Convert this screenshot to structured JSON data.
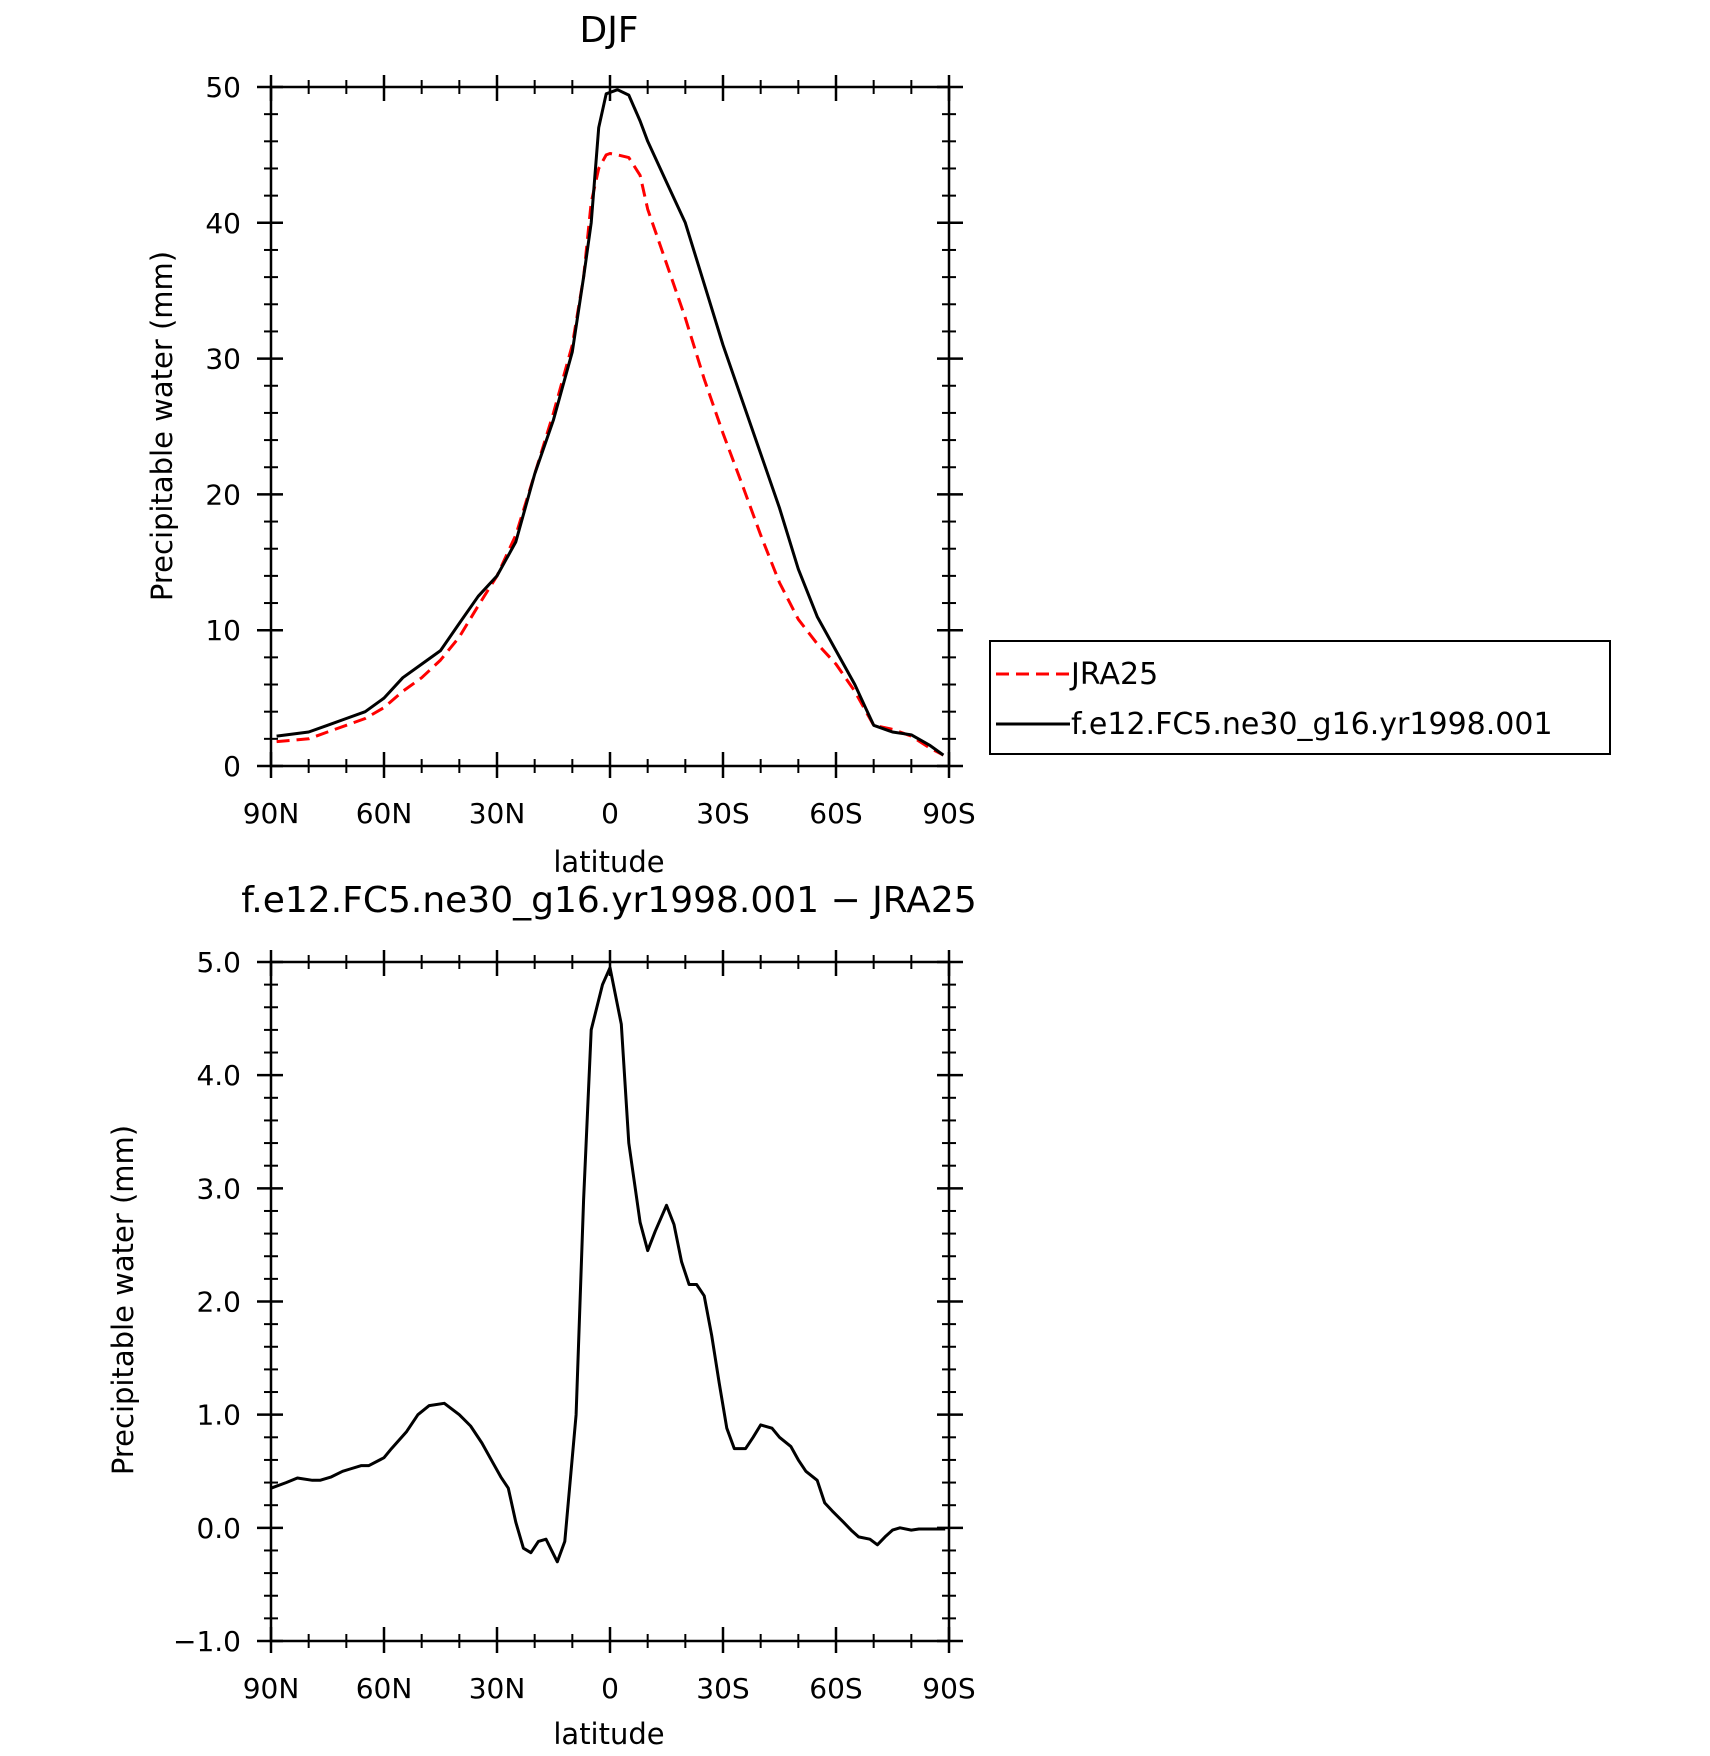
{
  "colors": {
    "model": "#000000",
    "jra": "#ff0000",
    "frame": "#000000",
    "background": "#ffffff"
  },
  "legend": {
    "entries": [
      {
        "label": "JRA25",
        "style": "dashed-red"
      },
      {
        "label": "f.e12.FC5.ne30_g16.yr1998.001",
        "style": "solid-black"
      }
    ]
  },
  "chart_data": [
    {
      "type": "line",
      "title": "DJF",
      "xlabel": "latitude",
      "ylabel": "Precipitable water (mm)",
      "x_direction": "north-to-south",
      "xlim": [
        90,
        -90
      ],
      "xticks": [
        90,
        60,
        30,
        0,
        -30,
        -60,
        -90
      ],
      "xtick_labels": [
        "90N",
        "60N",
        "30N",
        "0",
        "30S",
        "60S",
        "90S"
      ],
      "ylim": [
        0,
        50
      ],
      "yticks": [
        0,
        10,
        20,
        30,
        40,
        50
      ],
      "ytick_labels": [
        "0",
        "10",
        "20",
        "30",
        "40",
        "50"
      ],
      "grid": false,
      "legend_position": "right",
      "series": [
        {
          "name": "JRA25",
          "style": "dashed",
          "color": "#ff0000",
          "x": [
            88.5,
            80,
            75,
            70,
            65,
            60,
            55,
            50,
            45,
            40,
            35,
            30,
            25,
            20,
            15,
            10,
            7,
            5,
            3,
            1,
            0,
            -2,
            -5,
            -8,
            -10,
            -15,
            -20,
            -25,
            -30,
            -35,
            -40,
            -45,
            -50,
            -55,
            -60,
            -65,
            -68,
            -70,
            -75,
            -80,
            -85,
            -88.5
          ],
          "y": [
            1.8,
            2.0,
            2.5,
            3.0,
            3.5,
            4.3,
            5.5,
            6.5,
            7.8,
            9.5,
            11.8,
            14.0,
            17.0,
            21.5,
            26.0,
            31.0,
            36.0,
            41.5,
            44.0,
            45.0,
            45.1,
            45.0,
            44.8,
            43.5,
            41.0,
            37.0,
            33.0,
            28.5,
            24.5,
            20.8,
            17.0,
            13.5,
            10.8,
            9.0,
            7.5,
            5.5,
            4.0,
            3.0,
            2.7,
            2.2,
            1.3,
            0.8
          ]
        },
        {
          "name": "f.e12.FC5.ne30_g16.yr1998.001",
          "style": "solid",
          "color": "#000000",
          "x": [
            88.5,
            80,
            75,
            70,
            65,
            60,
            55,
            50,
            45,
            40,
            35,
            30,
            25,
            20,
            15,
            10,
            7,
            5,
            3,
            1,
            -2,
            -5,
            -8,
            -10,
            -15,
            -20,
            -25,
            -30,
            -35,
            -40,
            -45,
            -50,
            -55,
            -60,
            -65,
            -68,
            -70,
            -75,
            -80,
            -85,
            -88.5
          ],
          "y": [
            2.2,
            2.5,
            3.0,
            3.5,
            4.0,
            5.0,
            6.5,
            7.5,
            8.5,
            10.5,
            12.5,
            14.0,
            16.5,
            21.5,
            25.5,
            30.5,
            36.0,
            40.0,
            47.0,
            49.5,
            49.8,
            49.4,
            47.5,
            46.0,
            43.0,
            40.0,
            35.5,
            31.0,
            27.0,
            23.0,
            19.0,
            14.5,
            11.0,
            8.5,
            6.0,
            4.2,
            3.0,
            2.5,
            2.3,
            1.5,
            0.8
          ]
        }
      ]
    },
    {
      "type": "line",
      "title": "f.e12.FC5.ne30_g16.yr1998.001 − JRA25",
      "xlabel": "latitude",
      "ylabel": "Precipitable water (mm)",
      "x_direction": "north-to-south",
      "xlim": [
        90,
        -90
      ],
      "xticks": [
        90,
        60,
        30,
        0,
        -30,
        -60,
        -90
      ],
      "xtick_labels": [
        "90N",
        "60N",
        "30N",
        "0",
        "30S",
        "60S",
        "90S"
      ],
      "ylim": [
        -1.0,
        5.0
      ],
      "yticks": [
        -1.0,
        0.0,
        1.0,
        2.0,
        3.0,
        4.0,
        5.0
      ],
      "ytick_labels": [
        "−1.0",
        "0.0",
        "1.0",
        "2.0",
        "3.0",
        "4.0",
        "5.0"
      ],
      "grid": false,
      "series": [
        {
          "name": "f.e12.FC5.ne30_g16.yr1998.001 − JRA25",
          "style": "solid",
          "color": "#000000",
          "x": [
            90,
            86,
            83,
            79,
            77,
            74,
            71,
            69,
            66,
            64,
            60,
            58,
            54,
            51,
            48,
            44,
            40,
            37,
            34,
            31,
            29,
            27,
            25,
            23,
            21,
            19,
            17,
            14,
            12,
            9,
            7,
            5,
            2,
            0,
            -3,
            -5,
            -8,
            -10,
            -12,
            -15,
            -17,
            -19,
            -21,
            -23,
            -25,
            -27,
            -29,
            -31,
            -33,
            -36,
            -38,
            -40,
            -43,
            -45,
            -48,
            -50,
            -52,
            -55,
            -57,
            -59,
            -62,
            -64,
            -66,
            -69,
            -71,
            -73,
            -75,
            -77,
            -80,
            -82,
            -85,
            -87,
            -89
          ],
          "y": [
            0.35,
            0.4,
            0.44,
            0.42,
            0.42,
            0.45,
            0.5,
            0.52,
            0.55,
            0.55,
            0.62,
            0.7,
            0.85,
            1.0,
            1.08,
            1.1,
            1.0,
            0.9,
            0.75,
            0.57,
            0.45,
            0.35,
            0.05,
            -0.18,
            -0.22,
            -0.12,
            -0.1,
            -0.3,
            -0.12,
            1.0,
            2.9,
            4.4,
            4.8,
            4.95,
            4.45,
            3.4,
            2.7,
            2.45,
            2.62,
            2.85,
            2.68,
            2.35,
            2.15,
            2.15,
            2.05,
            1.7,
            1.28,
            0.88,
            0.7,
            0.7,
            0.8,
            0.91,
            0.88,
            0.8,
            0.72,
            0.6,
            0.5,
            0.42,
            0.22,
            0.15,
            0.05,
            -0.02,
            -0.08,
            -0.1,
            -0.15,
            -0.08,
            -0.02,
            0.0,
            -0.02,
            -0.01,
            -0.01,
            -0.01,
            -0.01
          ]
        }
      ]
    }
  ]
}
